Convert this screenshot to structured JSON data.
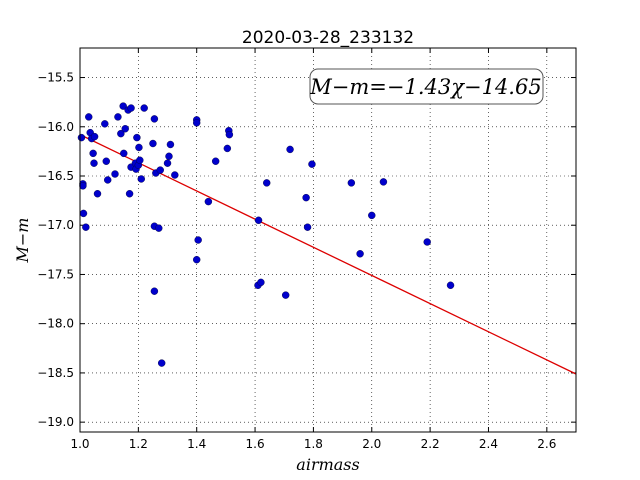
{
  "chart_data": {
    "type": "scatter",
    "title": "2020-03-28_233132",
    "xlabel": "airmass",
    "ylabel": "M−m",
    "xlim": [
      1.0,
      2.7
    ],
    "ylim": [
      -19.1,
      -15.2
    ],
    "y_inverted": true,
    "grid": true,
    "xticks": [
      1.0,
      1.2,
      1.4,
      1.6,
      1.8,
      2.0,
      2.2,
      2.4,
      2.6
    ],
    "xtick_labels": [
      "1.0",
      "1.2",
      "1.4",
      "1.6",
      "1.8",
      "2.0",
      "2.2",
      "2.4",
      "2.6"
    ],
    "yticks": [
      -15.5,
      -16.0,
      -16.5,
      -17.0,
      -17.5,
      -18.0,
      -18.5,
      -19.0
    ],
    "ytick_labels": [
      "−15.5",
      "−16.0",
      "−16.5",
      "−17.0",
      "−17.5",
      "−18.0",
      "−18.5",
      "−19.0"
    ],
    "annotation": "M−m=−1.43χ−14.65",
    "fit_line": {
      "slope": -1.43,
      "intercept": -14.65,
      "color": "#dd0000"
    },
    "point_color": "#0000cc",
    "points": [
      [
        1.005,
        -16.11
      ],
      [
        1.01,
        -16.58
      ],
      [
        1.01,
        -16.6
      ],
      [
        1.012,
        -16.88
      ],
      [
        1.02,
        -17.02
      ],
      [
        1.03,
        -15.9
      ],
      [
        1.035,
        -16.06
      ],
      [
        1.04,
        -16.12
      ],
      [
        1.045,
        -16.27
      ],
      [
        1.048,
        -16.37
      ],
      [
        1.05,
        -16.1
      ],
      [
        1.06,
        -16.68
      ],
      [
        1.085,
        -15.97
      ],
      [
        1.09,
        -16.35
      ],
      [
        1.095,
        -16.54
      ],
      [
        1.12,
        -16.48
      ],
      [
        1.13,
        -15.9
      ],
      [
        1.14,
        -16.07
      ],
      [
        1.148,
        -15.79
      ],
      [
        1.15,
        -16.27
      ],
      [
        1.155,
        -16.02
      ],
      [
        1.165,
        -15.83
      ],
      [
        1.17,
        -16.68
      ],
      [
        1.175,
        -15.81
      ],
      [
        1.175,
        -16.41
      ],
      [
        1.19,
        -16.37
      ],
      [
        1.192,
        -16.43
      ],
      [
        1.195,
        -16.11
      ],
      [
        1.2,
        -16.39
      ],
      [
        1.202,
        -16.21
      ],
      [
        1.205,
        -16.34
      ],
      [
        1.21,
        -16.53
      ],
      [
        1.22,
        -15.81
      ],
      [
        1.25,
        -16.17
      ],
      [
        1.255,
        -15.92
      ],
      [
        1.255,
        -17.01
      ],
      [
        1.255,
        -17.67
      ],
      [
        1.26,
        -16.47
      ],
      [
        1.27,
        -17.03
      ],
      [
        1.275,
        -16.44
      ],
      [
        1.28,
        -18.4
      ],
      [
        1.3,
        -16.37
      ],
      [
        1.305,
        -16.3
      ],
      [
        1.31,
        -16.18
      ],
      [
        1.325,
        -16.49
      ],
      [
        1.4,
        -15.93
      ],
      [
        1.4,
        -15.96
      ],
      [
        1.4,
        -17.35
      ],
      [
        1.405,
        -17.15
      ],
      [
        1.44,
        -16.76
      ],
      [
        1.465,
        -16.35
      ],
      [
        1.505,
        -16.22
      ],
      [
        1.51,
        -16.04
      ],
      [
        1.512,
        -16.08
      ],
      [
        1.61,
        -17.61
      ],
      [
        1.612,
        -16.95
      ],
      [
        1.62,
        -17.58
      ],
      [
        1.64,
        -16.57
      ],
      [
        1.705,
        -17.71
      ],
      [
        1.72,
        -16.23
      ],
      [
        1.775,
        -16.72
      ],
      [
        1.78,
        -17.02
      ],
      [
        1.795,
        -16.38
      ],
      [
        1.93,
        -16.57
      ],
      [
        1.96,
        -17.29
      ],
      [
        2.0,
        -16.9
      ],
      [
        2.04,
        -16.56
      ],
      [
        2.19,
        -17.17
      ],
      [
        2.27,
        -17.61
      ]
    ]
  }
}
